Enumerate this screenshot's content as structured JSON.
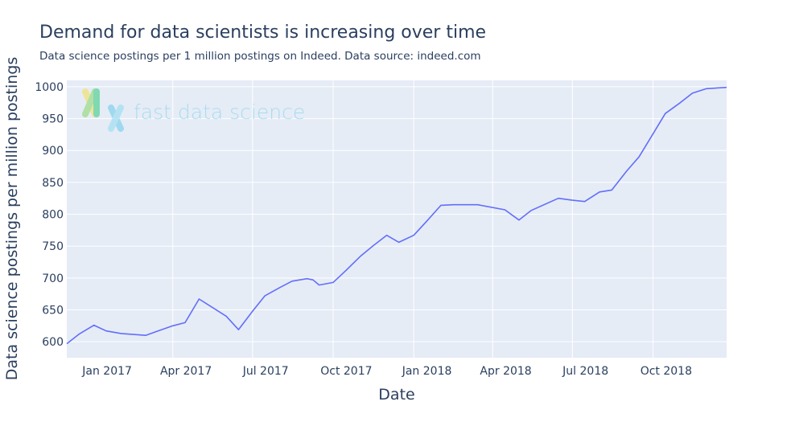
{
  "chart_data": {
    "type": "line",
    "title": "Demand for data scientists is increasing over time",
    "subtitle": "Data science postings per 1 million postings on Indeed. Data source: indeed.com",
    "xlabel": "Date",
    "ylabel": "Data science postings per million postings",
    "x_tick_labels": [
      "Jan 2017",
      "Apr 2017",
      "Jul 2017",
      "Oct 2017",
      "Jan 2018",
      "Apr 2018",
      "Jul 2018",
      "Oct 2018"
    ],
    "y_ticks": [
      600,
      650,
      700,
      750,
      800,
      850,
      900,
      950,
      1000
    ],
    "ylim": [
      575,
      1010
    ],
    "xlim": [
      "2016-12-01",
      "2018-12-24"
    ],
    "grid": true,
    "line_color": "#636efa",
    "plot_bgcolor": "#e5ecf6",
    "series": [
      {
        "x": [
          "2016-12-01",
          "2016-12-15",
          "2017-01-01",
          "2017-01-15",
          "2017-02-01",
          "2017-03-01",
          "2017-03-15",
          "2017-04-01",
          "2017-04-15",
          "2017-05-01",
          "2017-06-01",
          "2017-06-15",
          "2017-07-01",
          "2017-07-15",
          "2017-08-01",
          "2017-08-15",
          "2017-09-01",
          "2017-09-08",
          "2017-09-15",
          "2017-10-01",
          "2017-10-15",
          "2017-11-01",
          "2017-11-15",
          "2017-12-01",
          "2017-12-15",
          "2018-01-01",
          "2018-01-15",
          "2018-02-01",
          "2018-02-15",
          "2018-03-15",
          "2018-04-15",
          "2018-05-01",
          "2018-05-15",
          "2018-06-15",
          "2018-07-01",
          "2018-07-15",
          "2018-08-01",
          "2018-08-15",
          "2018-09-01",
          "2018-09-15",
          "2018-10-01",
          "2018-10-15",
          "2018-11-01",
          "2018-11-15",
          "2018-12-01",
          "2018-12-24"
        ],
        "y": [
          597,
          612,
          626,
          617,
          613,
          610,
          617,
          625,
          630,
          667,
          640,
          619,
          648,
          672,
          685,
          695,
          699,
          697,
          689,
          693,
          711,
          734,
          750,
          767,
          756,
          767,
          788,
          814,
          815,
          815,
          807,
          791,
          806,
          825,
          822,
          820,
          835,
          838,
          868,
          890,
          926,
          958,
          975,
          990,
          997,
          999
        ]
      }
    ]
  },
  "watermark": {
    "text": "fast data science"
  }
}
